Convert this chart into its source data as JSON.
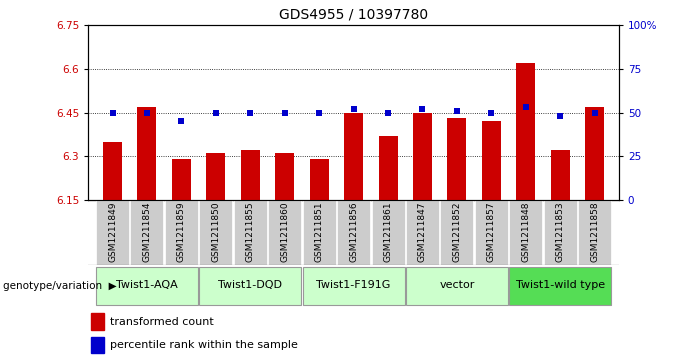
{
  "title": "GDS4955 / 10397780",
  "samples": [
    "GSM1211849",
    "GSM1211854",
    "GSM1211859",
    "GSM1211850",
    "GSM1211855",
    "GSM1211860",
    "GSM1211851",
    "GSM1211856",
    "GSM1211861",
    "GSM1211847",
    "GSM1211852",
    "GSM1211857",
    "GSM1211848",
    "GSM1211853",
    "GSM1211858"
  ],
  "bar_values": [
    6.35,
    6.47,
    6.29,
    6.31,
    6.32,
    6.31,
    6.29,
    6.45,
    6.37,
    6.45,
    6.43,
    6.42,
    6.62,
    6.32,
    6.47
  ],
  "percentile_values": [
    50,
    50,
    45,
    50,
    50,
    50,
    50,
    52,
    50,
    52,
    51,
    50,
    53,
    48,
    50
  ],
  "ylim_left": [
    6.15,
    6.75
  ],
  "ylim_right": [
    0,
    100
  ],
  "yticks_left": [
    6.15,
    6.3,
    6.45,
    6.6,
    6.75
  ],
  "yticks_right": [
    0,
    25,
    50,
    75,
    100
  ],
  "ytick_labels_right": [
    "0",
    "25",
    "50",
    "75",
    "100%"
  ],
  "bar_color": "#cc0000",
  "percentile_color": "#0000cc",
  "groups": [
    {
      "label": "Twist1-AQA",
      "start": 0,
      "end": 2,
      "color": "#ccffcc"
    },
    {
      "label": "Twist1-DQD",
      "start": 3,
      "end": 5,
      "color": "#ccffcc"
    },
    {
      "label": "Twist1-F191G",
      "start": 6,
      "end": 8,
      "color": "#ccffcc"
    },
    {
      "label": "vector",
      "start": 9,
      "end": 11,
      "color": "#ccffcc"
    },
    {
      "label": "Twist1-wild type",
      "start": 12,
      "end": 14,
      "color": "#55dd55"
    }
  ],
  "group_label_prefix": "genotype/variation",
  "legend_bar_label": "transformed count",
  "legend_dot_label": "percentile rank within the sample",
  "sample_box_color": "#cccccc",
  "title_fontsize": 10,
  "tick_label_fontsize": 7.5,
  "group_fontsize": 8,
  "legend_fontsize": 8
}
